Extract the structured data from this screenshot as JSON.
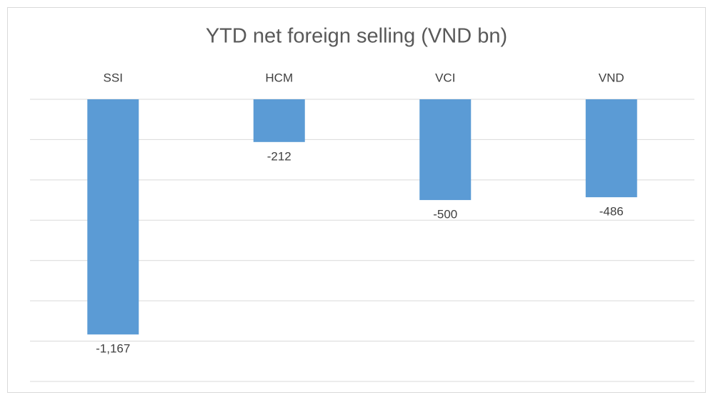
{
  "chart_data": {
    "type": "bar",
    "title": "YTD net foreign selling (VND bn)",
    "categories": [
      "SSI",
      "HCM",
      "VCI",
      "VND"
    ],
    "values": [
      -1167,
      -212,
      -500,
      -486
    ],
    "value_labels": [
      "-1,167",
      "-212",
      "-500",
      "-486"
    ],
    "color": "#5b9bd5",
    "ylim": [
      -1400,
      0
    ],
    "yticks": [
      0,
      -200,
      -400,
      -600,
      -800,
      -1000,
      -1200,
      -1400
    ],
    "grid": true
  }
}
